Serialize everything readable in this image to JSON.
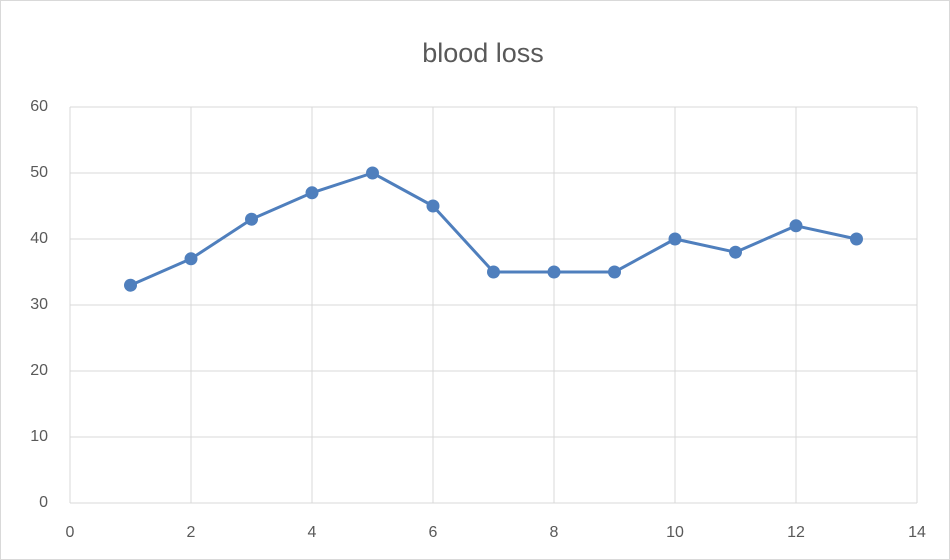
{
  "chart_data": {
    "type": "line",
    "title": "blood loss",
    "x": [
      1,
      2,
      3,
      4,
      5,
      6,
      7,
      8,
      9,
      10,
      11,
      12,
      13
    ],
    "series": [
      {
        "name": "blood loss",
        "color": "#4f7fbd",
        "values": [
          33,
          37,
          43,
          47,
          50,
          45,
          35,
          35,
          35,
          40,
          38,
          42,
          40
        ]
      }
    ],
    "xlim": [
      0,
      14
    ],
    "xticks": [
      0,
      2,
      4,
      6,
      8,
      10,
      12,
      14
    ],
    "ylim": [
      0,
      60
    ],
    "yticks": [
      0,
      10,
      20,
      30,
      40,
      50,
      60
    ],
    "grid": true
  }
}
